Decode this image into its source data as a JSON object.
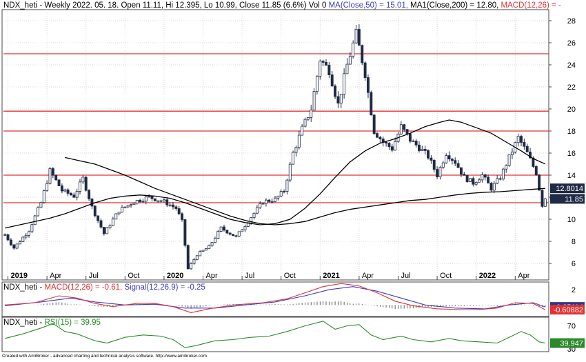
{
  "header": {
    "main_title_prefix": "NDX_heti - Weekly 2022. 05. 18. Open 11.11, Hi 12.395, Lo 10.99, Close 11.85 (6.6%) Vol 0 ",
    "main_title_ma50": "MA(Close,50) = 15.01, ",
    "main_title_ma200": "MA1(Close,200) = 12.80, ",
    "main_title_macd": "MACD(12,26) = -",
    "macd_title_prefix": "NDX_heti - ",
    "macd_title_macd": "MACD(12,26) = -0.61, ",
    "macd_title_signal": "Signal(12,26,9) = -0.25",
    "rsi_title_prefix": "NDX_heti - ",
    "rsi_title_rsi": "RSI(15) = 39.95",
    "footer": "Created with AmiBroker - advanced charting and technical analysis software. http://www.amibroker.com"
  },
  "colors": {
    "candle_up": "#ffffff",
    "candle_down": "#1f2a44",
    "candle_border": "#1f2a44",
    "ma": "#000000",
    "hline": "#e03030",
    "grid": "#d8d8d8",
    "macd": "#e03030",
    "signal": "#3a3ac8",
    "rsi": "#2a8a2a",
    "badge_dark": "#1f2a44",
    "badge_red": "#e03030",
    "badge_blue": "#2a3a90",
    "badge_green": "#2a8a2a"
  },
  "chart_data": [
    {
      "type": "candlestick",
      "timeframe": "weekly",
      "x_ticks": [
        "2019",
        "Apr",
        "Jul",
        "Oct",
        "2020",
        "Apr",
        "Jul",
        "Oct",
        "2021",
        "Apr",
        "Jul",
        "Oct",
        "2022",
        "Apr"
      ],
      "y_ticks": [
        "6",
        "8",
        "10",
        "12",
        "14",
        "16",
        "18",
        "20",
        "22",
        "24",
        "26",
        "28"
      ],
      "ylim": [
        4.5,
        29
      ],
      "horizontal_lines": [
        25.0,
        19.8,
        18.0,
        14.0,
        11.5
      ],
      "anchors": [
        [
          0,
          8.6
        ],
        [
          3,
          7.4
        ],
        [
          8,
          9.0
        ],
        [
          12,
          11.5
        ],
        [
          15,
          14.4
        ],
        [
          19,
          12.6
        ],
        [
          23,
          12.1
        ],
        [
          26,
          13.7
        ],
        [
          29,
          11.1
        ],
        [
          33,
          8.7
        ],
        [
          38,
          10.8
        ],
        [
          43,
          11.6
        ],
        [
          48,
          12.0
        ],
        [
          53,
          11.6
        ],
        [
          57,
          11.0
        ],
        [
          59,
          9.8
        ],
        [
          61,
          5.5
        ],
        [
          64,
          6.8
        ],
        [
          68,
          7.5
        ],
        [
          72,
          9.2
        ],
        [
          77,
          8.4
        ],
        [
          82,
          10.2
        ],
        [
          86,
          11.6
        ],
        [
          90,
          11.8
        ],
        [
          93,
          12.6
        ],
        [
          96,
          16.0
        ],
        [
          99,
          18.2
        ],
        [
          102,
          20.0
        ],
        [
          105,
          24.5
        ],
        [
          108,
          23.5
        ],
        [
          111,
          20.4
        ],
        [
          114,
          24.0
        ],
        [
          117,
          26.8
        ],
        [
          120,
          23.2
        ],
        [
          123,
          18.0
        ],
        [
          126,
          17.0
        ],
        [
          129,
          16.4
        ],
        [
          132,
          18.4
        ],
        [
          135,
          17.2
        ],
        [
          138,
          16.5
        ],
        [
          141,
          15.7
        ],
        [
          144,
          14.0
        ],
        [
          147,
          16.0
        ],
        [
          150,
          15.2
        ],
        [
          153,
          13.8
        ],
        [
          156,
          13.3
        ],
        [
          159,
          14.0
        ],
        [
          162,
          12.8
        ],
        [
          165,
          13.8
        ],
        [
          168,
          15.6
        ],
        [
          171,
          17.4
        ],
        [
          174,
          16.0
        ],
        [
          177,
          14.2
        ],
        [
          179,
          11.3
        ],
        [
          180,
          11.85
        ]
      ],
      "ma50_points": [
        [
          0,
          9.2
        ],
        [
          5,
          9.5
        ],
        [
          10,
          9.8
        ],
        [
          15,
          10.1
        ],
        [
          20,
          10.5
        ],
        [
          25,
          11.0
        ],
        [
          30,
          11.5
        ],
        [
          35,
          11.9
        ],
        [
          40,
          12.1
        ],
        [
          45,
          12.2
        ],
        [
          50,
          12.1
        ],
        [
          55,
          11.9
        ],
        [
          60,
          11.5
        ],
        [
          65,
          11.0
        ],
        [
          70,
          10.5
        ],
        [
          75,
          10.0
        ],
        [
          80,
          9.7
        ],
        [
          85,
          9.5
        ],
        [
          90,
          9.6
        ],
        [
          95,
          10.0
        ],
        [
          100,
          11.0
        ],
        [
          105,
          12.3
        ],
        [
          110,
          13.8
        ],
        [
          115,
          15.2
        ],
        [
          120,
          16.2
        ],
        [
          125,
          16.9
        ],
        [
          130,
          17.3
        ],
        [
          135,
          17.8
        ],
        [
          140,
          18.4
        ],
        [
          145,
          18.8
        ],
        [
          148,
          19.0
        ],
        [
          152,
          18.8
        ],
        [
          157,
          18.3
        ],
        [
          162,
          17.8
        ],
        [
          167,
          17.0
        ],
        [
          172,
          16.2
        ],
        [
          176,
          15.5
        ],
        [
          180,
          15.01
        ]
      ],
      "ma200_points": [
        [
          20,
          15.6
        ],
        [
          25,
          15.3
        ],
        [
          30,
          15.0
        ],
        [
          35,
          14.5
        ],
        [
          40,
          14.0
        ],
        [
          45,
          13.4
        ],
        [
          50,
          12.8
        ],
        [
          55,
          12.3
        ],
        [
          60,
          11.8
        ],
        [
          65,
          11.3
        ],
        [
          70,
          10.8
        ],
        [
          75,
          10.3
        ],
        [
          80,
          9.9
        ],
        [
          85,
          9.6
        ],
        [
          90,
          9.5
        ],
        [
          95,
          9.6
        ],
        [
          100,
          9.8
        ],
        [
          105,
          10.2
        ],
        [
          110,
          10.6
        ],
        [
          115,
          10.9
        ],
        [
          120,
          11.1
        ],
        [
          125,
          11.3
        ],
        [
          130,
          11.5
        ],
        [
          135,
          11.7
        ],
        [
          140,
          11.8
        ],
        [
          145,
          12.0
        ],
        [
          150,
          12.2
        ],
        [
          155,
          12.35
        ],
        [
          160,
          12.45
        ],
        [
          165,
          12.5
        ],
        [
          170,
          12.6
        ],
        [
          175,
          12.7
        ],
        [
          180,
          12.8
        ]
      ],
      "last_close": "11.85",
      "ma_last_value": "12.8014"
    },
    {
      "type": "macd",
      "series": [
        {
          "name": "MACD(12,26)",
          "value": "-0.61"
        },
        {
          "name": "Signal(12,26,9)",
          "value": "-0.25"
        }
      ],
      "y_ticks": [
        "2"
      ],
      "ylim": [
        -1.5,
        3
      ],
      "macd_points": [
        [
          0,
          0.0
        ],
        [
          10,
          0.3
        ],
        [
          18,
          1.2
        ],
        [
          24,
          0.9
        ],
        [
          30,
          0.2
        ],
        [
          36,
          -0.2
        ],
        [
          44,
          0.2
        ],
        [
          50,
          0.2
        ],
        [
          56,
          -0.2
        ],
        [
          62,
          -1.0
        ],
        [
          68,
          -0.5
        ],
        [
          76,
          0.0
        ],
        [
          86,
          0.3
        ],
        [
          94,
          0.8
        ],
        [
          100,
          1.6
        ],
        [
          106,
          2.4
        ],
        [
          112,
          2.8
        ],
        [
          118,
          2.5
        ],
        [
          124,
          1.6
        ],
        [
          130,
          0.5
        ],
        [
          136,
          -0.1
        ],
        [
          144,
          -0.5
        ],
        [
          152,
          -0.6
        ],
        [
          158,
          -0.6
        ],
        [
          164,
          -0.4
        ],
        [
          170,
          0.3
        ],
        [
          176,
          0.2
        ],
        [
          180,
          -0.61
        ]
      ],
      "signal_points": [
        [
          0,
          -0.1
        ],
        [
          12,
          0.4
        ],
        [
          22,
          0.9
        ],
        [
          30,
          0.4
        ],
        [
          40,
          0.0
        ],
        [
          50,
          0.1
        ],
        [
          60,
          -0.4
        ],
        [
          70,
          -0.4
        ],
        [
          80,
          0.0
        ],
        [
          90,
          0.4
        ],
        [
          100,
          1.2
        ],
        [
          108,
          2.0
        ],
        [
          116,
          2.4
        ],
        [
          124,
          1.8
        ],
        [
          132,
          0.9
        ],
        [
          140,
          0.0
        ],
        [
          150,
          -0.4
        ],
        [
          160,
          -0.5
        ],
        [
          168,
          0.0
        ],
        [
          176,
          0.3
        ],
        [
          180,
          -0.25
        ]
      ],
      "macd_last": "-0.60882",
      "signal_last": "-0.25114"
    },
    {
      "type": "rsi",
      "series": [
        {
          "name": "RSI(15)",
          "value": "39.95"
        }
      ],
      "y_ticks": [
        "70",
        "30"
      ],
      "ylim": [
        25,
        85
      ],
      "rsi_points": [
        [
          0,
          48
        ],
        [
          6,
          56
        ],
        [
          12,
          66
        ],
        [
          16,
          74
        ],
        [
          20,
          60
        ],
        [
          24,
          56
        ],
        [
          30,
          44
        ],
        [
          34,
          40
        ],
        [
          40,
          50
        ],
        [
          46,
          54
        ],
        [
          52,
          52
        ],
        [
          56,
          46
        ],
        [
          60,
          32
        ],
        [
          64,
          36
        ],
        [
          70,
          44
        ],
        [
          76,
          46
        ],
        [
          82,
          50
        ],
        [
          88,
          52
        ],
        [
          94,
          60
        ],
        [
          100,
          70
        ],
        [
          106,
          78
        ],
        [
          110,
          64
        ],
        [
          114,
          70
        ],
        [
          118,
          72
        ],
        [
          122,
          54
        ],
        [
          126,
          46
        ],
        [
          132,
          52
        ],
        [
          136,
          46
        ],
        [
          142,
          42
        ],
        [
          148,
          48
        ],
        [
          152,
          44
        ],
        [
          158,
          42
        ],
        [
          164,
          40
        ],
        [
          168,
          50
        ],
        [
          172,
          60
        ],
        [
          175,
          54
        ],
        [
          178,
          42
        ],
        [
          180,
          39.95
        ]
      ],
      "rsi_last": "39.947"
    }
  ]
}
